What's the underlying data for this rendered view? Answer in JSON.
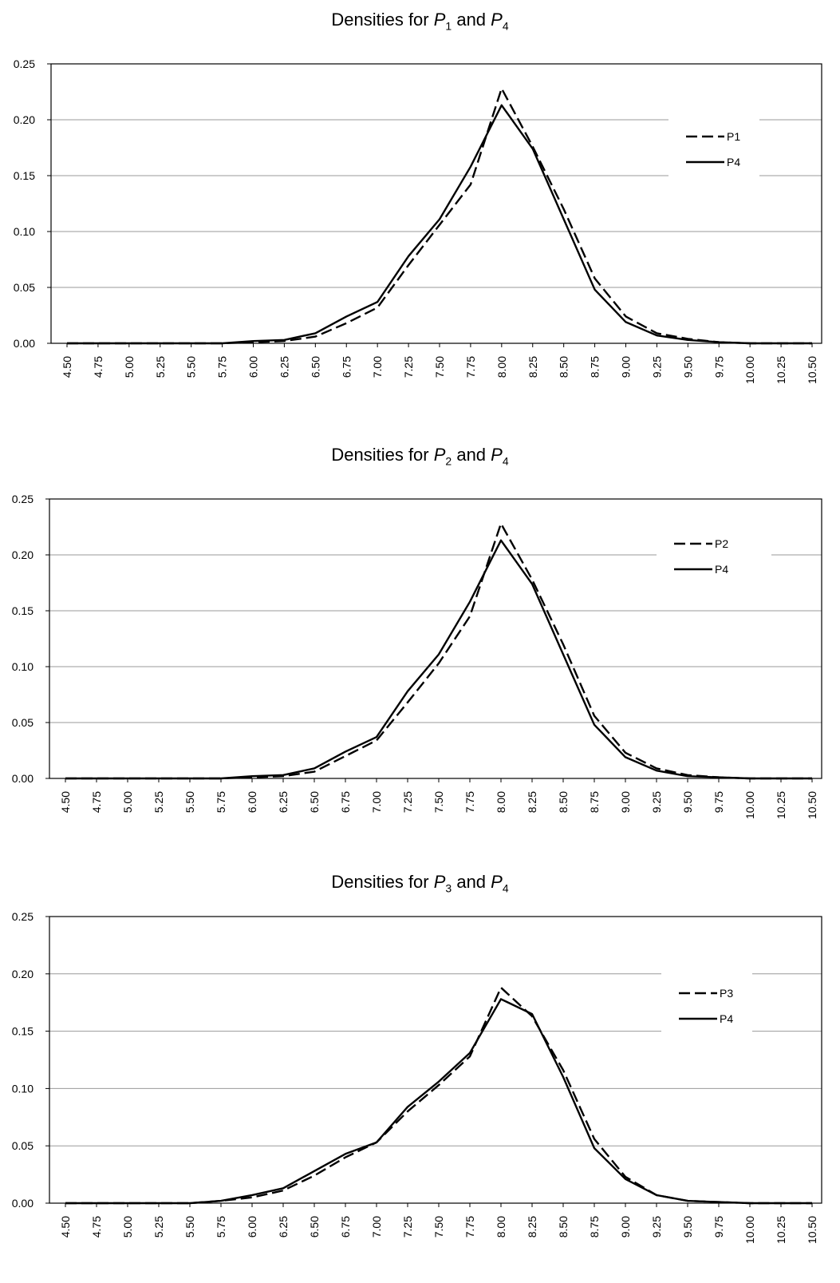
{
  "chart_data": [
    {
      "type": "line",
      "title": {
        "prefix": "Densities for ",
        "sym_a": "P",
        "sub_a": "1",
        "mid": " and ",
        "sym_b": "P",
        "sub_b": "4"
      },
      "x": [
        "4.50",
        "4.75",
        "5.00",
        "5.25",
        "5.50",
        "5.75",
        "6.00",
        "6.25",
        "6.50",
        "6.75",
        "7.00",
        "7.25",
        "7.50",
        "7.75",
        "8.00",
        "8.25",
        "8.50",
        "8.75",
        "9.00",
        "9.25",
        "9.50",
        "9.75",
        "10.00",
        "10.25",
        "10.50"
      ],
      "y_ticks": [
        "0.00",
        "0.05",
        "0.10",
        "0.15",
        "0.20",
        "0.25"
      ],
      "ylim": [
        0,
        0.25
      ],
      "grid": true,
      "legend_position": "top-right",
      "series": [
        {
          "name": "P1",
          "style": "dashed",
          "color": "#000000",
          "values": [
            0.0,
            0.0,
            0.0,
            0.0,
            0.0,
            0.0,
            0.001,
            0.002,
            0.006,
            0.018,
            0.032,
            0.07,
            0.106,
            0.142,
            0.228,
            0.176,
            0.12,
            0.058,
            0.024,
            0.009,
            0.004,
            0.001,
            0.0,
            0.0,
            0.0
          ]
        },
        {
          "name": "P4",
          "style": "solid",
          "color": "#000000",
          "values": [
            0.0,
            0.0,
            0.0,
            0.0,
            0.0,
            0.0,
            0.002,
            0.003,
            0.009,
            0.024,
            0.037,
            0.078,
            0.111,
            0.158,
            0.213,
            0.174,
            0.111,
            0.048,
            0.019,
            0.007,
            0.003,
            0.001,
            0.0,
            0.0,
            0.0
          ]
        }
      ]
    },
    {
      "type": "line",
      "title": {
        "prefix": "Densities for ",
        "sym_a": "P",
        "sub_a": "2",
        "mid": " and ",
        "sym_b": "P",
        "sub_b": "4"
      },
      "x": [
        "4.50",
        "4.75",
        "5.00",
        "5.25",
        "5.50",
        "5.75",
        "6.00",
        "6.25",
        "6.50",
        "6.75",
        "7.00",
        "7.25",
        "7.50",
        "7.75",
        "8.00",
        "8.25",
        "8.50",
        "8.75",
        "9.00",
        "9.25",
        "9.50",
        "9.75",
        "10.00",
        "10.25",
        "10.50"
      ],
      "y_ticks": [
        "0.00",
        "0.05",
        "0.10",
        "0.15",
        "0.20",
        "0.25"
      ],
      "ylim": [
        0,
        0.25
      ],
      "grid": true,
      "legend_position": "top-right",
      "series": [
        {
          "name": "P2",
          "style": "dashed",
          "color": "#000000",
          "values": [
            0.0,
            0.0,
            0.0,
            0.0,
            0.0,
            0.0,
            0.001,
            0.002,
            0.006,
            0.02,
            0.034,
            0.068,
            0.103,
            0.145,
            0.228,
            0.178,
            0.12,
            0.056,
            0.023,
            0.009,
            0.003,
            0.001,
            0.0,
            0.0,
            0.0
          ]
        },
        {
          "name": "P4",
          "style": "solid",
          "color": "#000000",
          "values": [
            0.0,
            0.0,
            0.0,
            0.0,
            0.0,
            0.0,
            0.002,
            0.003,
            0.009,
            0.024,
            0.037,
            0.078,
            0.111,
            0.158,
            0.213,
            0.174,
            0.111,
            0.048,
            0.019,
            0.007,
            0.002,
            0.001,
            0.0,
            0.0,
            0.0
          ]
        }
      ]
    },
    {
      "type": "line",
      "title": {
        "prefix": "Densities for ",
        "sym_a": "P",
        "sub_a": "3",
        "mid": " and ",
        "sym_b": "P",
        "sub_b": "4"
      },
      "x": [
        "4.50",
        "4.75",
        "5.00",
        "5.25",
        "5.50",
        "5.75",
        "6.00",
        "6.25",
        "6.50",
        "6.75",
        "7.00",
        "7.25",
        "7.50",
        "7.75",
        "8.00",
        "8.25",
        "8.50",
        "8.75",
        "9.00",
        "9.25",
        "9.50",
        "9.75",
        "10.00",
        "10.25",
        "10.50"
      ],
      "y_ticks": [
        "0.00",
        "0.05",
        "0.10",
        "0.15",
        "0.20",
        "0.25"
      ],
      "ylim": [
        0,
        0.25
      ],
      "grid": true,
      "legend_position": "top-right",
      "series": [
        {
          "name": "P3",
          "style": "dashed",
          "color": "#000000",
          "values": [
            0.0,
            0.0,
            0.0,
            0.0,
            0.0,
            0.002,
            0.005,
            0.011,
            0.024,
            0.04,
            0.053,
            0.08,
            0.103,
            0.128,
            0.188,
            0.163,
            0.116,
            0.056,
            0.023,
            0.007,
            0.002,
            0.001,
            0.0,
            0.0,
            0.0
          ]
        },
        {
          "name": "P4",
          "style": "solid",
          "color": "#000000",
          "values": [
            0.0,
            0.0,
            0.0,
            0.0,
            0.0,
            0.002,
            0.007,
            0.013,
            0.028,
            0.043,
            0.053,
            0.084,
            0.106,
            0.131,
            0.178,
            0.165,
            0.11,
            0.048,
            0.021,
            0.007,
            0.002,
            0.001,
            0.0,
            0.0,
            0.0
          ]
        }
      ]
    }
  ]
}
